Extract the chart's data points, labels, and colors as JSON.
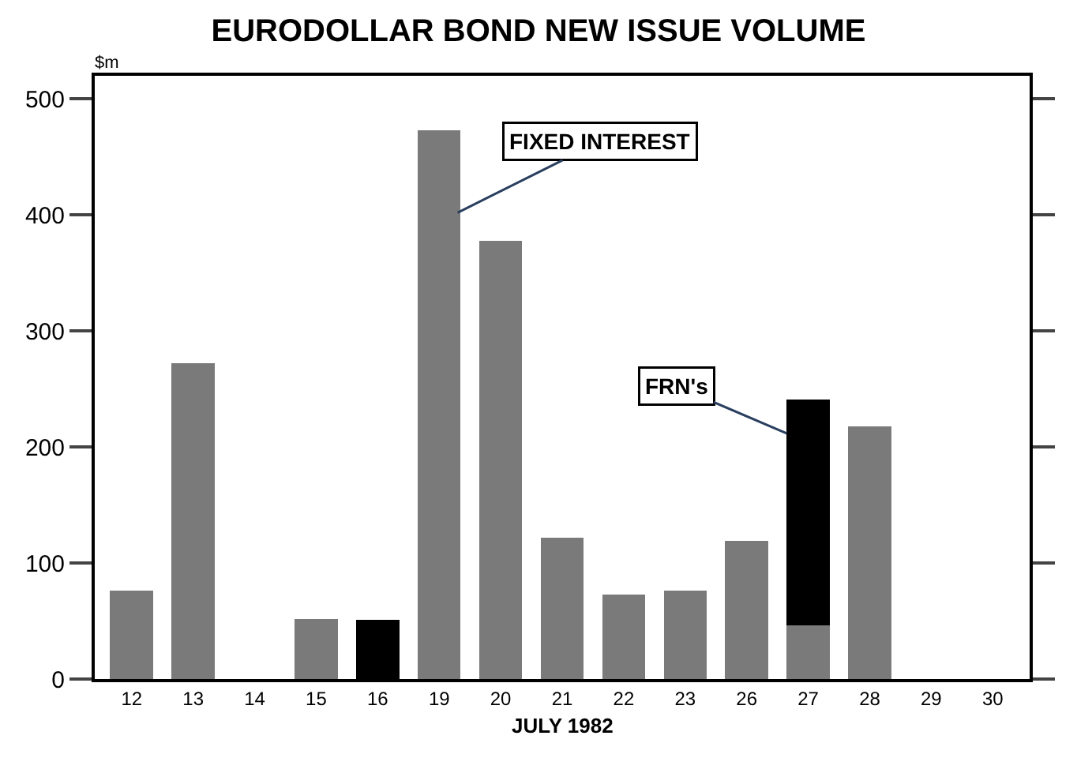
{
  "chart_data": {
    "type": "bar",
    "title": "EURODOLLAR BOND NEW ISSUE VOLUME",
    "xlabel": "JULY 1982",
    "ylabel": "$m",
    "categories": [
      "12",
      "13",
      "14",
      "15",
      "16",
      "19",
      "20",
      "21",
      "22",
      "23",
      "26",
      "27",
      "28",
      "29",
      "30"
    ],
    "stacked": true,
    "series": [
      {
        "name": "FIXED INTEREST",
        "color": "#7a7a7a",
        "values": [
          76,
          272,
          0,
          52,
          null,
          473,
          378,
          122,
          73,
          76,
          119,
          46,
          218,
          0,
          0
        ]
      },
      {
        "name": "FRN's",
        "color": "#000000",
        "values": [
          null,
          null,
          null,
          null,
          51,
          null,
          null,
          null,
          null,
          null,
          null,
          195,
          null,
          null,
          null
        ]
      }
    ],
    "ylim": [
      0,
      520
    ],
    "yticks": [
      0,
      100,
      200,
      300,
      400,
      500
    ],
    "legend": false
  }
}
